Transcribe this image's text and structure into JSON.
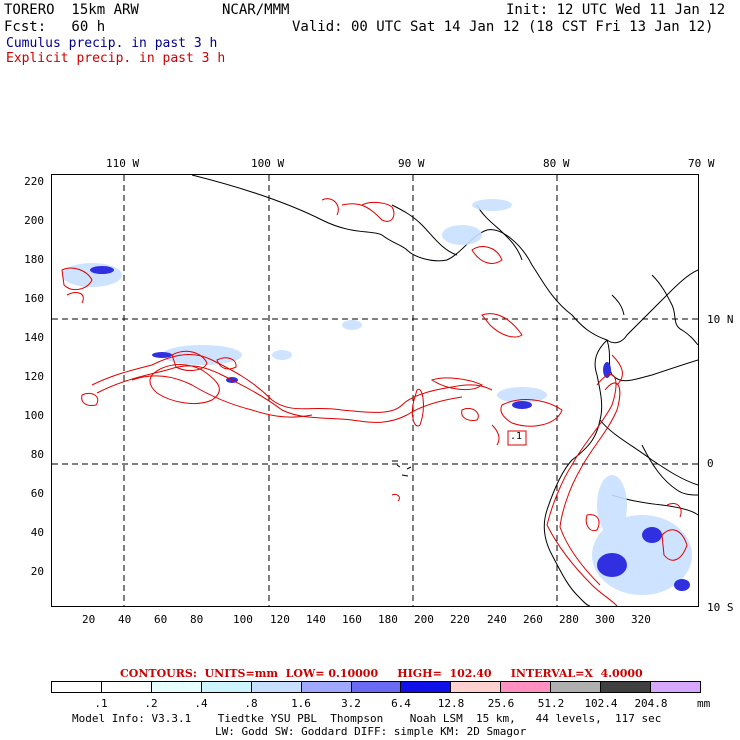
{
  "header": {
    "model": "TORERO  15km ARW",
    "org": "NCAR/MMM",
    "init": "Init: 12 UTC Wed 11 Jan 12",
    "fcst": "Fcst:   60 h",
    "valid": "Valid: 00 UTC Sat 14 Jan 12 (18 CST Fri 13 Jan 12)",
    "field1": "Cumulus precip. in past 3 h",
    "field2": "Explicit precip. in past 3 h",
    "field1_color": "#00008b",
    "field2_color": "#cc0000"
  },
  "map": {
    "top_labels": [
      "110 W",
      "100 W",
      "90 W",
      "80 W",
      "70 W"
    ],
    "right_labels": [
      "10 N",
      "0",
      "10 S"
    ],
    "y_ticks": [
      "220",
      "200",
      "180",
      "160",
      "140",
      "120",
      "100",
      "80",
      "60",
      "40",
      "20"
    ],
    "x_ticks": [
      "20",
      "40",
      "60",
      "80",
      "100",
      "120",
      "140",
      "160",
      "180",
      "200",
      "220",
      "240",
      "260",
      "280",
      "300",
      "320"
    ],
    "point_label": ".1"
  },
  "legend": {
    "contours": "CONTOURS:  UNITS=mm  LOW= 0.10000     HIGH=  102.40     INTERVAL=X  4.0000",
    "bins": [
      ".1",
      ".2",
      ".4",
      ".8",
      "1.6",
      "3.2",
      "6.4",
      "12.8",
      "25.6",
      "51.2",
      "102.4",
      "204.8"
    ],
    "unit": "mm",
    "colors": [
      "#ffffff",
      "#ffffff",
      "#e6ffff",
      "#ccf5ff",
      "#c8e0ff",
      "#a0a8ff",
      "#6a6af5",
      "#1010e8",
      "#ffd0d0",
      "#ff90c0",
      "#b0b0b0",
      "#404040",
      "#d8a8ff"
    ]
  },
  "footer": {
    "line1": "Model Info: V3.3.1    Tiedtke YSU PBL  Thompson    Noah LSM  15 km,   44 levels,  117 sec",
    "line2": "LW: Godd SW: Goddard DIFF: simple KM: 2D Smagor"
  }
}
